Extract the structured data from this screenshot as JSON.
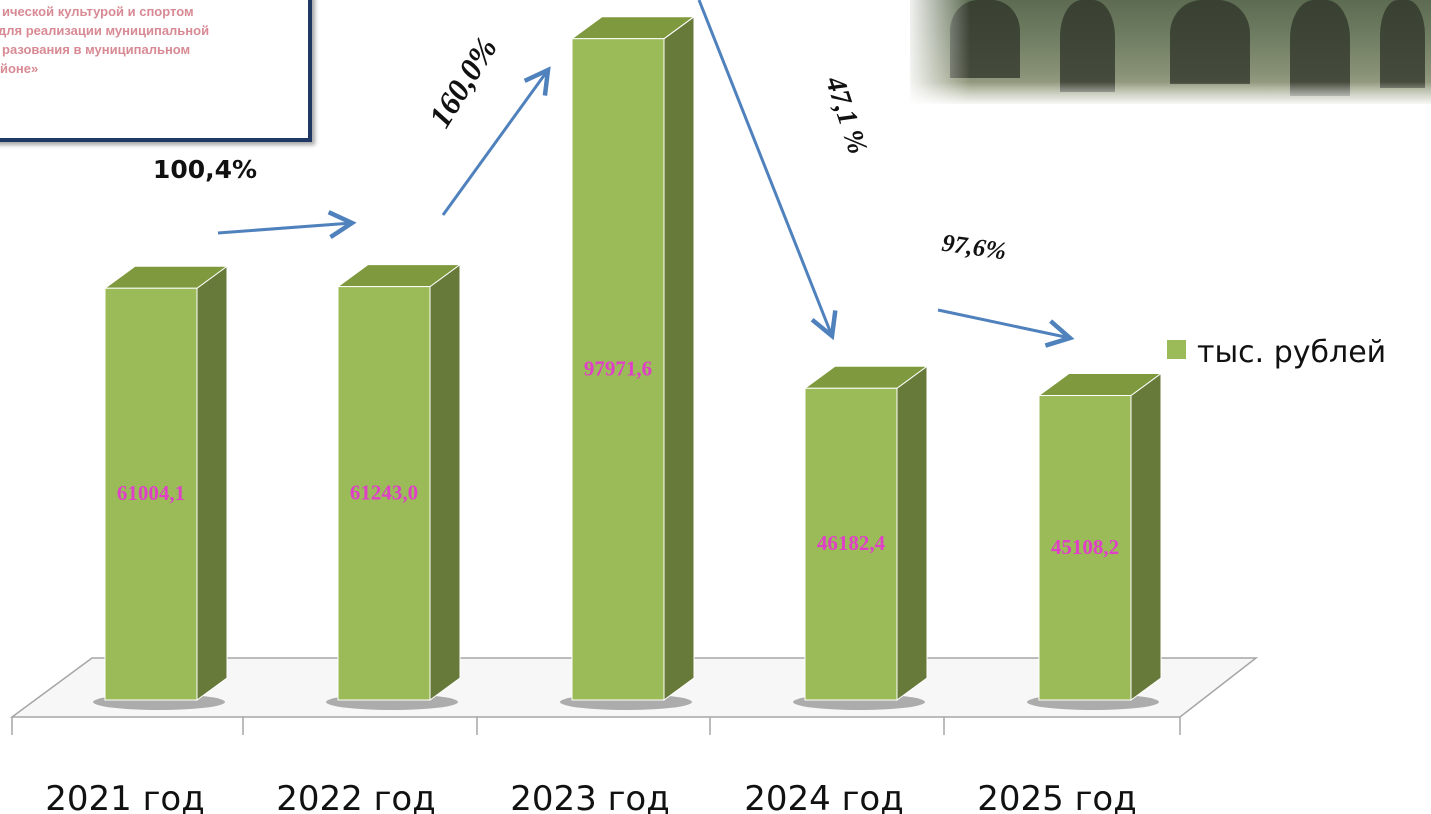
{
  "title_lines": [
    "ической культурой и спортом",
    "для реализации муниципальной",
    "разования в муниципальном",
    "йоне»"
  ],
  "chart_data": {
    "type": "bar",
    "title": "",
    "xlabel": "",
    "ylabel": "",
    "categories": [
      "2021 год",
      "2022 год",
      "2023 год",
      "2024 год",
      "2025 год"
    ],
    "series": [
      {
        "name": "тыс. рублей",
        "values": [
          61004.1,
          61243.0,
          97971.6,
          46182.4,
          45108.2
        ]
      }
    ],
    "value_labels": [
      "61004,1",
      "61243,0",
      "97971,6",
      "46182,4",
      "45108,2"
    ],
    "growth_labels": [
      "100,4%",
      "160,0%",
      "47,1 %",
      "97,6%"
    ],
    "ylim": [
      0,
      100000
    ],
    "grid": false,
    "legend": "right",
    "colors": {
      "bar_front": "#9bbb59",
      "bar_side": "#687a3a",
      "bar_top": "#7f993e",
      "value_label": "#e040c8",
      "arrow": "#4f81bd",
      "axis": "#a6a6a6"
    }
  }
}
